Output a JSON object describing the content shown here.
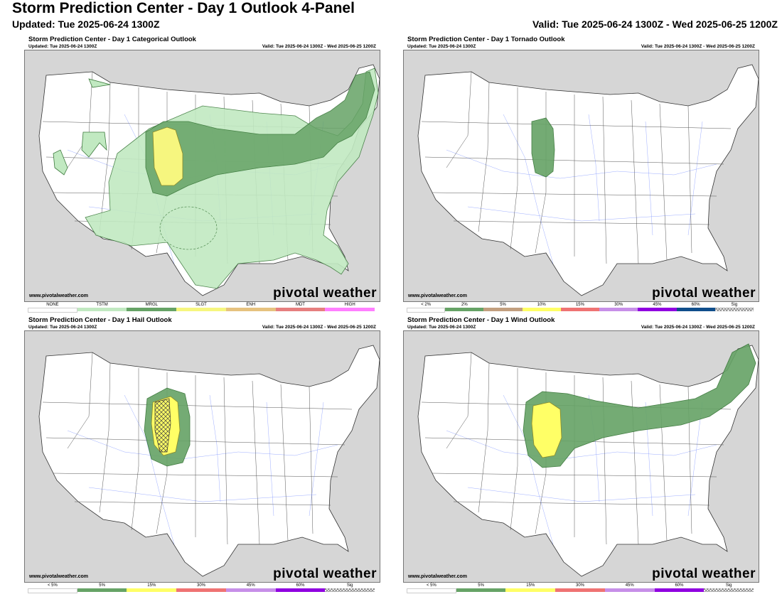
{
  "header": {
    "title": "Storm Prediction Center - Day 1 Outlook 4-Panel",
    "updated": "Updated: Tue 2025-06-24 1300Z",
    "valid": "Valid: Tue 2025-06-24 1300Z - Wed 2025-06-25 1200Z"
  },
  "colors": {
    "land": "#ffffff",
    "water": "#d6d6d6",
    "tstm": "#c1e9c1",
    "mrgl": "#66a366",
    "slgt": "#fff566",
    "sig": "#b0b0b0"
  },
  "panels": [
    {
      "title": "Storm Prediction Center - Day 1 Categorical Outlook",
      "updated": "Updated: Tue 2025-06-24 1300Z",
      "valid": "Valid: Tue 2025-06-24 1300Z - Wed 2025-06-25 1200Z",
      "credit": "www.pivotalweather.com",
      "brand": "pivotal weather",
      "legend": [
        {
          "label": "NONE",
          "color": "#ffffff"
        },
        {
          "label": "TSTM",
          "color": "#c1e9c1"
        },
        {
          "label": "MRGL",
          "color": "#66a366"
        },
        {
          "label": "SLGT",
          "color": "#f6f67f"
        },
        {
          "label": "ENH",
          "color": "#e6c27f"
        },
        {
          "label": "MDT",
          "color": "#e67f7f"
        },
        {
          "label": "HIGH",
          "color": "#ff7fff"
        }
      ]
    },
    {
      "title": "Storm Prediction Center - Day 1 Tornado Outlook",
      "updated": "Updated: Tue 2025-06-24 1300Z",
      "valid": "Valid: Tue 2025-06-24 1300Z - Wed 2025-06-25 1200Z",
      "credit": "www.pivotalweather.com",
      "brand": "pivotal weather",
      "legend": [
        {
          "label": "< 2%",
          "color": "#ffffff"
        },
        {
          "label": "2%",
          "color": "#66a366"
        },
        {
          "label": "5%",
          "color": "#c29f7f"
        },
        {
          "label": "10%",
          "color": "#ffff66"
        },
        {
          "label": "15%",
          "color": "#ef7373"
        },
        {
          "label": "30%",
          "color": "#c78fe8"
        },
        {
          "label": "45%",
          "color": "#9000e0"
        },
        {
          "label": "60%",
          "color": "#104e8b"
        },
        {
          "label": "Sig",
          "color": "hatch"
        }
      ]
    },
    {
      "title": "Storm Prediction Center - Day 1 Hail Outlook",
      "updated": "Updated: Tue 2025-06-24 1300Z",
      "valid": "Valid: Tue 2025-06-24 1300Z - Wed 2025-06-25 1200Z",
      "credit": "www.pivotalweather.com",
      "brand": "pivotal weather",
      "legend": [
        {
          "label": "< 5%",
          "color": "#ffffff"
        },
        {
          "label": "5%",
          "color": "#66a366"
        },
        {
          "label": "15%",
          "color": "#ffff66"
        },
        {
          "label": "30%",
          "color": "#ef7373"
        },
        {
          "label": "45%",
          "color": "#c78fe8"
        },
        {
          "label": "60%",
          "color": "#9000e0"
        },
        {
          "label": "Sig",
          "color": "hatch"
        }
      ]
    },
    {
      "title": "Storm Prediction Center - Day 1 Wind Outlook",
      "updated": "Updated: Tue 2025-06-24 1300Z",
      "valid": "Valid: Tue 2025-06-24 1300Z - Wed 2025-06-25 1200Z",
      "credit": "www.pivotalweather.com",
      "brand": "pivotal weather",
      "legend": [
        {
          "label": "< 5%",
          "color": "#ffffff"
        },
        {
          "label": "5%",
          "color": "#66a366"
        },
        {
          "label": "15%",
          "color": "#ffff66"
        },
        {
          "label": "30%",
          "color": "#ef7373"
        },
        {
          "label": "45%",
          "color": "#c78fe8"
        },
        {
          "label": "60%",
          "color": "#9000e0"
        },
        {
          "label": "Sig",
          "color": "hatch"
        }
      ]
    }
  ]
}
